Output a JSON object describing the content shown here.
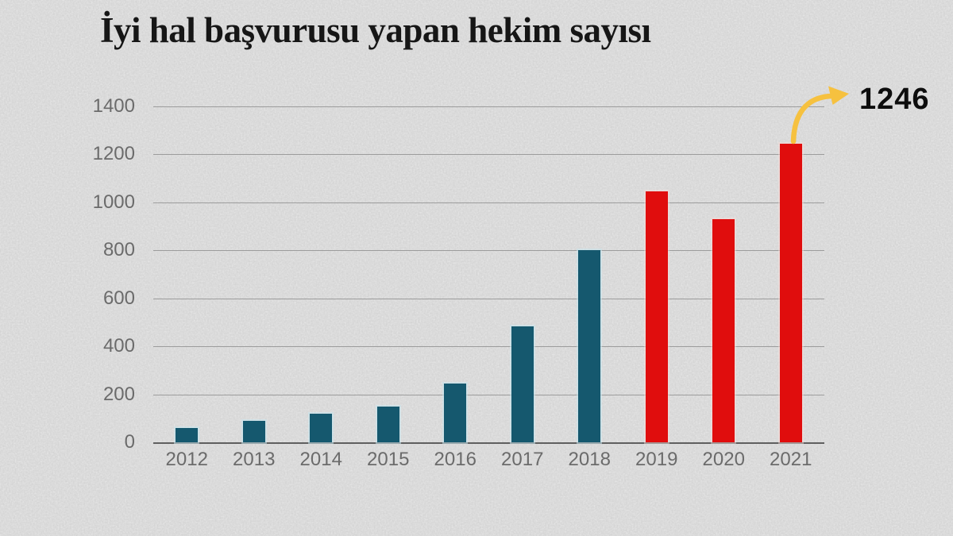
{
  "header": {
    "title": "İyi hal başvurusu yapan hekim sayısı"
  },
  "annotation": {
    "value": "1246",
    "target_year": "2021"
  },
  "colors": {
    "background": "#d6d6d6",
    "bar_default": "#15586e",
    "bar_highlight": "#e00d0d",
    "arrow": "#f6c13f",
    "title_text": "#161616",
    "axis_text": "#6b6b6b"
  },
  "chart_data": {
    "type": "bar",
    "title": "İyi hal başvurusu yapan hekim sayısı",
    "categories": [
      "2012",
      "2013",
      "2014",
      "2015",
      "2016",
      "2017",
      "2018",
      "2019",
      "2020",
      "2021"
    ],
    "values": [
      59,
      91,
      118,
      150,
      245,
      482,
      802,
      1047,
      931,
      1246
    ],
    "bar_colors": [
      "#15586e",
      "#15586e",
      "#15586e",
      "#15586e",
      "#15586e",
      "#15586e",
      "#15586e",
      "#e00d0d",
      "#e00d0d",
      "#e00d0d"
    ],
    "yticks": [
      0,
      200,
      400,
      600,
      800,
      1000,
      1200,
      1400
    ],
    "ylim": [
      0,
      1400
    ],
    "xlabel": "",
    "ylabel": "",
    "grid": true,
    "legend": null,
    "annotations": [
      {
        "target": "2021",
        "text": "1246",
        "style": "curved-yellow-arrow"
      }
    ]
  }
}
